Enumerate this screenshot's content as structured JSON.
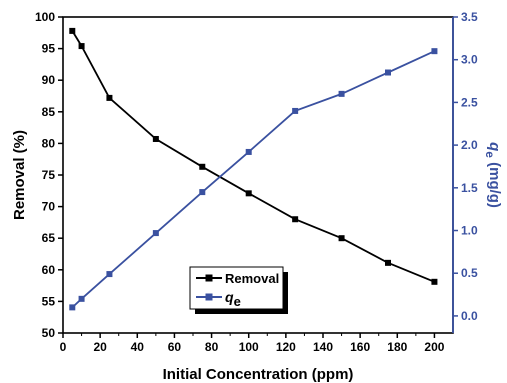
{
  "chart_data": {
    "type": "line",
    "xlabel": "Initial Concentration (ppm)",
    "ylabel": "Removal (%)",
    "y2label_main": "q",
    "y2label_sub": "e",
    "y2label_unit": " (mg/g)",
    "xlim": [
      0,
      210
    ],
    "ylim": [
      50,
      100
    ],
    "y2lim": [
      -0.2,
      3.5
    ],
    "xticks": [
      0,
      20,
      40,
      60,
      80,
      100,
      120,
      140,
      160,
      180,
      200
    ],
    "yticks": [
      50,
      55,
      60,
      65,
      70,
      75,
      80,
      85,
      90,
      95,
      100
    ],
    "y2ticks": [
      "0.0",
      "0.5",
      "1.0",
      "1.5",
      "2.0",
      "2.5",
      "3.0",
      "3.5"
    ],
    "legend_position": "bottom-center",
    "series": [
      {
        "name": "Removal",
        "axis": "left",
        "color": "#000000",
        "x": [
          5,
          10,
          25,
          50,
          75,
          100,
          125,
          150,
          175,
          200
        ],
        "y": [
          97.8,
          95.4,
          87.2,
          80.7,
          76.3,
          72.1,
          68.0,
          65.0,
          61.1,
          58.1
        ]
      },
      {
        "name_main": "q",
        "name_sub": "e",
        "axis": "right",
        "color": "#3a51a0",
        "x": [
          5,
          10,
          25,
          50,
          75,
          100,
          125,
          150,
          175,
          200
        ],
        "y": [
          0.1,
          0.2,
          0.49,
          0.97,
          1.45,
          1.92,
          2.4,
          2.6,
          2.85,
          3.1
        ]
      }
    ]
  }
}
